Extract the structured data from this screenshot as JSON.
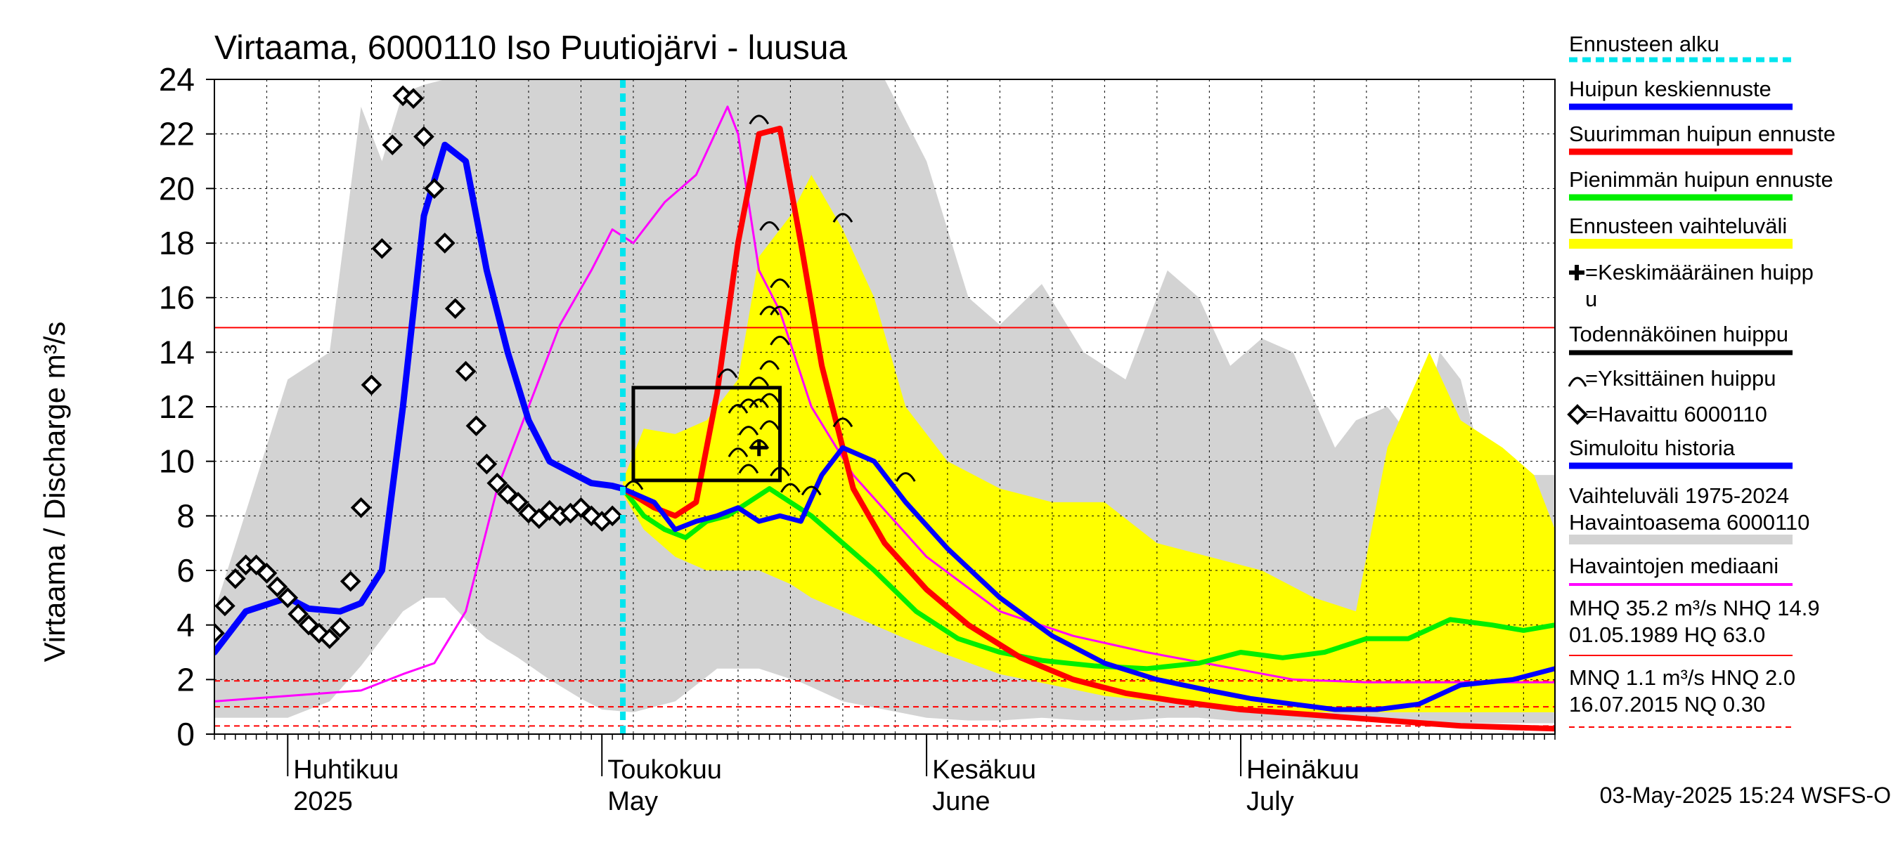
{
  "chart_data": {
    "type": "line",
    "title": "Virtaama, 6000110 Iso Puutiojärvi - luusua",
    "ylabel": "Virtaama / Discharge    m³/s",
    "ylim": [
      0,
      24
    ],
    "yticks": [
      "0",
      "2",
      "4",
      "6",
      "8",
      "10",
      "12",
      "14",
      "16",
      "18",
      "20",
      "22",
      "24"
    ],
    "x_start": "2025-03-25",
    "x_end": "2025-07-31",
    "month_labels": [
      {
        "fi": "Huhtikuu",
        "en": "2025",
        "date": "2025-04-01"
      },
      {
        "fi": "Toukokuu",
        "en": "May",
        "date": "2025-05-01"
      },
      {
        "fi": "Kesäkuu",
        "en": "June",
        "date": "2025-06-01"
      },
      {
        "fi": "Heinäkuu",
        "en": "July",
        "date": "2025-07-01"
      }
    ],
    "forecast_start": "2025-05-03",
    "reference_lines": {
      "MHQ_level": 14.9,
      "MNQ_red": 1.95,
      "NQ_red": 1.0,
      "lowest_red": 0.3
    },
    "likely_peak_box": {
      "x0": "2025-05-04",
      "x1": "2025-05-18",
      "y0": 9.3,
      "y1": 12.7
    },
    "mean_peak": {
      "date": "2025-05-16",
      "value": 10.5
    },
    "series": [
      {
        "name": "Vaihteluväli 1975-2024 Havaintoasema 6000110",
        "kind": "band",
        "color": "#d3d3d3",
        "x": [
          "2025-03-25",
          "2025-04-01",
          "2025-04-05",
          "2025-04-08",
          "2025-04-10",
          "2025-04-12",
          "2025-04-14",
          "2025-04-16",
          "2025-04-18",
          "2025-04-20",
          "2025-04-23",
          "2025-04-26",
          "2025-04-29",
          "2025-05-01",
          "2025-05-04",
          "2025-05-08",
          "2025-05-12",
          "2025-05-16",
          "2025-05-20",
          "2025-05-24",
          "2025-05-28",
          "2025-06-01",
          "2025-06-05",
          "2025-06-08",
          "2025-06-12",
          "2025-06-16",
          "2025-06-20",
          "2025-06-24",
          "2025-06-27",
          "2025-06-30",
          "2025-07-03",
          "2025-07-06",
          "2025-07-10",
          "2025-07-12",
          "2025-07-15",
          "2025-07-18",
          "2025-07-20",
          "2025-07-22",
          "2025-07-25",
          "2025-07-28",
          "2025-07-31"
        ],
        "upper": [
          4.5,
          13.0,
          14.0,
          23.0,
          21.0,
          23.5,
          23.8,
          24.0,
          24.0,
          24.0,
          24.0,
          24.0,
          24.0,
          24.0,
          24.0,
          24.0,
          24.0,
          24.0,
          24.0,
          24.0,
          24.0,
          21.0,
          16.0,
          15.0,
          16.5,
          14.0,
          13.0,
          17.0,
          16.0,
          13.5,
          14.5,
          14.0,
          10.5,
          11.5,
          12.0,
          10.5,
          14.0,
          13.0,
          8.5,
          9.5,
          9.5
        ],
        "lower": [
          0.6,
          0.6,
          1.2,
          2.5,
          3.5,
          4.5,
          5.0,
          5.0,
          4.2,
          3.5,
          2.8,
          2.0,
          1.3,
          0.9,
          0.8,
          1.2,
          2.4,
          2.4,
          1.9,
          1.2,
          0.9,
          0.6,
          0.5,
          0.5,
          0.6,
          0.5,
          0.5,
          0.6,
          0.6,
          0.5,
          0.5,
          0.5,
          0.5,
          0.5,
          0.4,
          0.4,
          0.4,
          0.4,
          0.4,
          0.4,
          0.4
        ]
      },
      {
        "name": "Ennusteen vaihteluväli",
        "kind": "band",
        "color": "#ffff00",
        "x": [
          "2025-05-03",
          "2025-05-05",
          "2025-05-08",
          "2025-05-11",
          "2025-05-14",
          "2025-05-16",
          "2025-05-19",
          "2025-05-21",
          "2025-05-24",
          "2025-05-27",
          "2025-05-30",
          "2025-06-03",
          "2025-06-08",
          "2025-06-13",
          "2025-06-18",
          "2025-06-23",
          "2025-06-28",
          "2025-07-03",
          "2025-07-08",
          "2025-07-12",
          "2025-07-15",
          "2025-07-19",
          "2025-07-22",
          "2025-07-26",
          "2025-07-29",
          "2025-07-31"
        ],
        "upper": [
          9.3,
          11.2,
          11.0,
          11.5,
          13.0,
          17.5,
          19.0,
          20.5,
          18.5,
          16.0,
          12.0,
          10.0,
          9.0,
          8.5,
          8.5,
          7.0,
          6.5,
          6.0,
          5.0,
          4.5,
          10.5,
          14.0,
          11.5,
          10.5,
          9.5,
          7.5
        ],
        "lower": [
          8.8,
          7.5,
          6.5,
          6.0,
          6.0,
          6.0,
          5.5,
          5.0,
          4.5,
          4.0,
          3.5,
          2.9,
          2.2,
          1.8,
          1.4,
          1.2,
          1.0,
          0.9,
          0.8,
          0.8,
          0.8,
          0.8,
          0.8,
          0.8,
          0.8,
          0.8
        ]
      },
      {
        "name": "Havaintojen mediaani",
        "kind": "line",
        "color": "#ff00ff",
        "x": [
          "2025-03-25",
          "2025-04-01",
          "2025-04-08",
          "2025-04-12",
          "2025-04-15",
          "2025-04-18",
          "2025-04-21",
          "2025-04-24",
          "2025-04-27",
          "2025-04-30",
          "2025-05-02",
          "2025-05-04",
          "2025-05-07",
          "2025-05-10",
          "2025-05-13",
          "2025-05-14",
          "2025-05-16",
          "2025-05-18",
          "2025-05-21",
          "2025-05-25",
          "2025-06-01",
          "2025-06-08",
          "2025-06-15",
          "2025-06-22",
          "2025-06-29",
          "2025-07-06",
          "2025-07-13",
          "2025-07-20",
          "2025-07-27",
          "2025-07-31"
        ],
        "y": [
          1.2,
          1.4,
          1.6,
          2.2,
          2.6,
          4.5,
          9.0,
          12.0,
          15.0,
          17.0,
          18.5,
          18.0,
          19.5,
          20.5,
          23.0,
          22.0,
          17.0,
          15.5,
          12.0,
          9.5,
          6.5,
          4.5,
          3.6,
          3.0,
          2.5,
          2.0,
          1.9,
          1.9,
          1.9,
          1.9
        ]
      },
      {
        "name": "Suurimman huipun ennuste",
        "kind": "line",
        "color": "#ff0000",
        "x": [
          "2025-05-03",
          "2025-05-06",
          "2025-05-08",
          "2025-05-10",
          "2025-05-12",
          "2025-05-14",
          "2025-05-16",
          "2025-05-18",
          "2025-05-20",
          "2025-05-22",
          "2025-05-25",
          "2025-05-28",
          "2025-06-01",
          "2025-06-05",
          "2025-06-10",
          "2025-06-15",
          "2025-06-20",
          "2025-06-25",
          "2025-07-01",
          "2025-07-08",
          "2025-07-15",
          "2025-07-22",
          "2025-07-31"
        ],
        "y": [
          9.0,
          8.3,
          8.0,
          8.5,
          12.5,
          18.0,
          22.0,
          22.2,
          18.0,
          13.5,
          9.0,
          7.0,
          5.3,
          4.0,
          2.8,
          2.0,
          1.5,
          1.2,
          0.9,
          0.7,
          0.5,
          0.3,
          0.2
        ]
      },
      {
        "name": "Pienimmän huipun ennuste",
        "kind": "line",
        "color": "#00ee00",
        "x": [
          "2025-05-03",
          "2025-05-05",
          "2025-05-07",
          "2025-05-09",
          "2025-05-11",
          "2025-05-13",
          "2025-05-15",
          "2025-05-17",
          "2025-05-19",
          "2025-05-21",
          "2025-05-24",
          "2025-05-27",
          "2025-05-31",
          "2025-06-04",
          "2025-06-08",
          "2025-06-12",
          "2025-06-17",
          "2025-06-22",
          "2025-06-27",
          "2025-07-01",
          "2025-07-05",
          "2025-07-09",
          "2025-07-13",
          "2025-07-17",
          "2025-07-21",
          "2025-07-25",
          "2025-07-28",
          "2025-07-31"
        ],
        "y": [
          9.0,
          8.0,
          7.5,
          7.2,
          7.8,
          8.0,
          8.5,
          9.0,
          8.5,
          8.0,
          7.0,
          6.0,
          4.5,
          3.5,
          3.0,
          2.7,
          2.5,
          2.4,
          2.6,
          3.0,
          2.8,
          3.0,
          3.5,
          3.5,
          4.2,
          4.0,
          3.8,
          4.0
        ]
      },
      {
        "name": "Huipun keskiennuste",
        "kind": "line",
        "color": "#0000ff",
        "x": [
          "2025-05-03",
          "2025-05-06",
          "2025-05-08",
          "2025-05-10",
          "2025-05-12",
          "2025-05-14",
          "2025-05-16",
          "2025-05-18",
          "2025-05-20",
          "2025-05-22",
          "2025-05-24",
          "2025-05-27",
          "2025-05-30",
          "2025-06-03",
          "2025-06-08",
          "2025-06-13",
          "2025-06-18",
          "2025-06-23",
          "2025-06-28",
          "2025-07-02",
          "2025-07-06",
          "2025-07-10",
          "2025-07-14",
          "2025-07-18",
          "2025-07-22",
          "2025-07-27",
          "2025-07-31"
        ],
        "y": [
          9.0,
          8.5,
          7.5,
          7.8,
          8.0,
          8.3,
          7.8,
          8.0,
          7.8,
          9.5,
          10.5,
          10.0,
          8.5,
          6.8,
          5.0,
          3.6,
          2.6,
          2.0,
          1.6,
          1.3,
          1.1,
          0.9,
          0.9,
          1.1,
          1.8,
          2.0,
          2.4
        ]
      },
      {
        "name": "Simuloitu historia",
        "kind": "line",
        "color": "#0000ff",
        "x": [
          "2025-03-25",
          "2025-03-28",
          "2025-04-01",
          "2025-04-03",
          "2025-04-06",
          "2025-04-08",
          "2025-04-10",
          "2025-04-12",
          "2025-04-14",
          "2025-04-16",
          "2025-04-18",
          "2025-04-20",
          "2025-04-22",
          "2025-04-24",
          "2025-04-26",
          "2025-04-28",
          "2025-04-30",
          "2025-05-02",
          "2025-05-03"
        ],
        "y": [
          3.0,
          4.5,
          5.0,
          4.6,
          4.5,
          4.8,
          6.0,
          12.0,
          19.0,
          21.6,
          21.0,
          17.0,
          14.0,
          11.5,
          10.0,
          9.6,
          9.2,
          9.1,
          9.0
        ]
      },
      {
        "name": "Havaittu 6000110",
        "kind": "markers",
        "color": "#000000",
        "x": [
          "2025-03-25",
          "2025-03-26",
          "2025-03-27",
          "2025-03-28",
          "2025-03-29",
          "2025-03-30",
          "2025-03-31",
          "2025-04-01",
          "2025-04-02",
          "2025-04-03",
          "2025-04-04",
          "2025-04-05",
          "2025-04-06",
          "2025-04-07",
          "2025-04-08",
          "2025-04-09",
          "2025-04-10",
          "2025-04-11",
          "2025-04-12",
          "2025-04-13",
          "2025-04-14",
          "2025-04-15",
          "2025-04-16",
          "2025-04-17",
          "2025-04-18",
          "2025-04-19",
          "2025-04-20",
          "2025-04-21",
          "2025-04-22",
          "2025-04-23",
          "2025-04-24",
          "2025-04-25",
          "2025-04-26",
          "2025-04-27",
          "2025-04-28",
          "2025-04-29",
          "2025-04-30",
          "2025-05-01",
          "2025-05-02"
        ],
        "y": [
          3.7,
          4.7,
          5.7,
          6.2,
          6.2,
          5.9,
          5.4,
          5.0,
          4.4,
          4.0,
          3.7,
          3.5,
          3.9,
          5.6,
          8.3,
          12.8,
          17.8,
          21.6,
          23.4,
          23.3,
          21.9,
          20.0,
          18.0,
          15.6,
          13.3,
          11.3,
          9.9,
          9.2,
          8.8,
          8.5,
          8.1,
          7.9,
          8.2,
          8.0,
          8.1,
          8.3,
          8.0,
          7.8,
          8.0
        ]
      },
      {
        "name": "Yksittäinen huippu",
        "kind": "markers",
        "x": [
          "2025-05-04",
          "2025-05-13",
          "2025-05-14",
          "2025-05-14",
          "2025-05-15",
          "2025-05-15",
          "2025-05-15",
          "2025-05-16",
          "2025-05-16",
          "2025-05-16",
          "2025-05-16",
          "2025-05-17",
          "2025-05-17",
          "2025-05-17",
          "2025-05-17",
          "2025-05-17",
          "2025-05-18",
          "2025-05-18",
          "2025-05-18",
          "2025-05-18",
          "2025-05-19",
          "2025-05-21",
          "2025-05-24",
          "2025-05-24",
          "2025-05-30"
        ],
        "y": [
          9.2,
          13.3,
          12.0,
          10.4,
          12.2,
          11.2,
          9.8,
          22.6,
          13.0,
          12.2,
          10.7,
          13.6,
          12.4,
          11.4,
          15.6,
          18.7,
          14.5,
          16.6,
          15.6,
          9.7,
          9.1,
          9.0,
          19.0,
          11.5,
          9.5
        ]
      }
    ],
    "legend": [
      "Ennusteen alku",
      "Huipun keskiennuste",
      "Suurimman huipun ennuste",
      "Pienimmän huipun ennuste",
      "Ennusteen vaihteluväli",
      "=Keskimääräinen huipp",
      "u",
      "Todennäköinen huippu",
      "=Yksittäinen huippu",
      "=Havaittu 6000110",
      "Simuloitu historia",
      "Vaihteluväli 1975-2024",
      " Havaintoasema 6000110",
      "Havaintojen mediaani",
      "MHQ 35.2 m³/s NHQ 14.9",
      "01.05.1989 HQ 63.0",
      "MNQ  1.1 m³/s HNQ  2.0",
      "16.07.2015 NQ 0.30"
    ],
    "footer": "03-May-2025 15:24 WSFS-O",
    "colors": {
      "grid": "#000000",
      "cyan": "#00e5ee",
      "gray": "#d3d3d3",
      "yellow": "#ffff00",
      "red": "#ff0000",
      "green": "#00ee00",
      "blue": "#0000ff",
      "magenta": "#ff00ff"
    }
  }
}
